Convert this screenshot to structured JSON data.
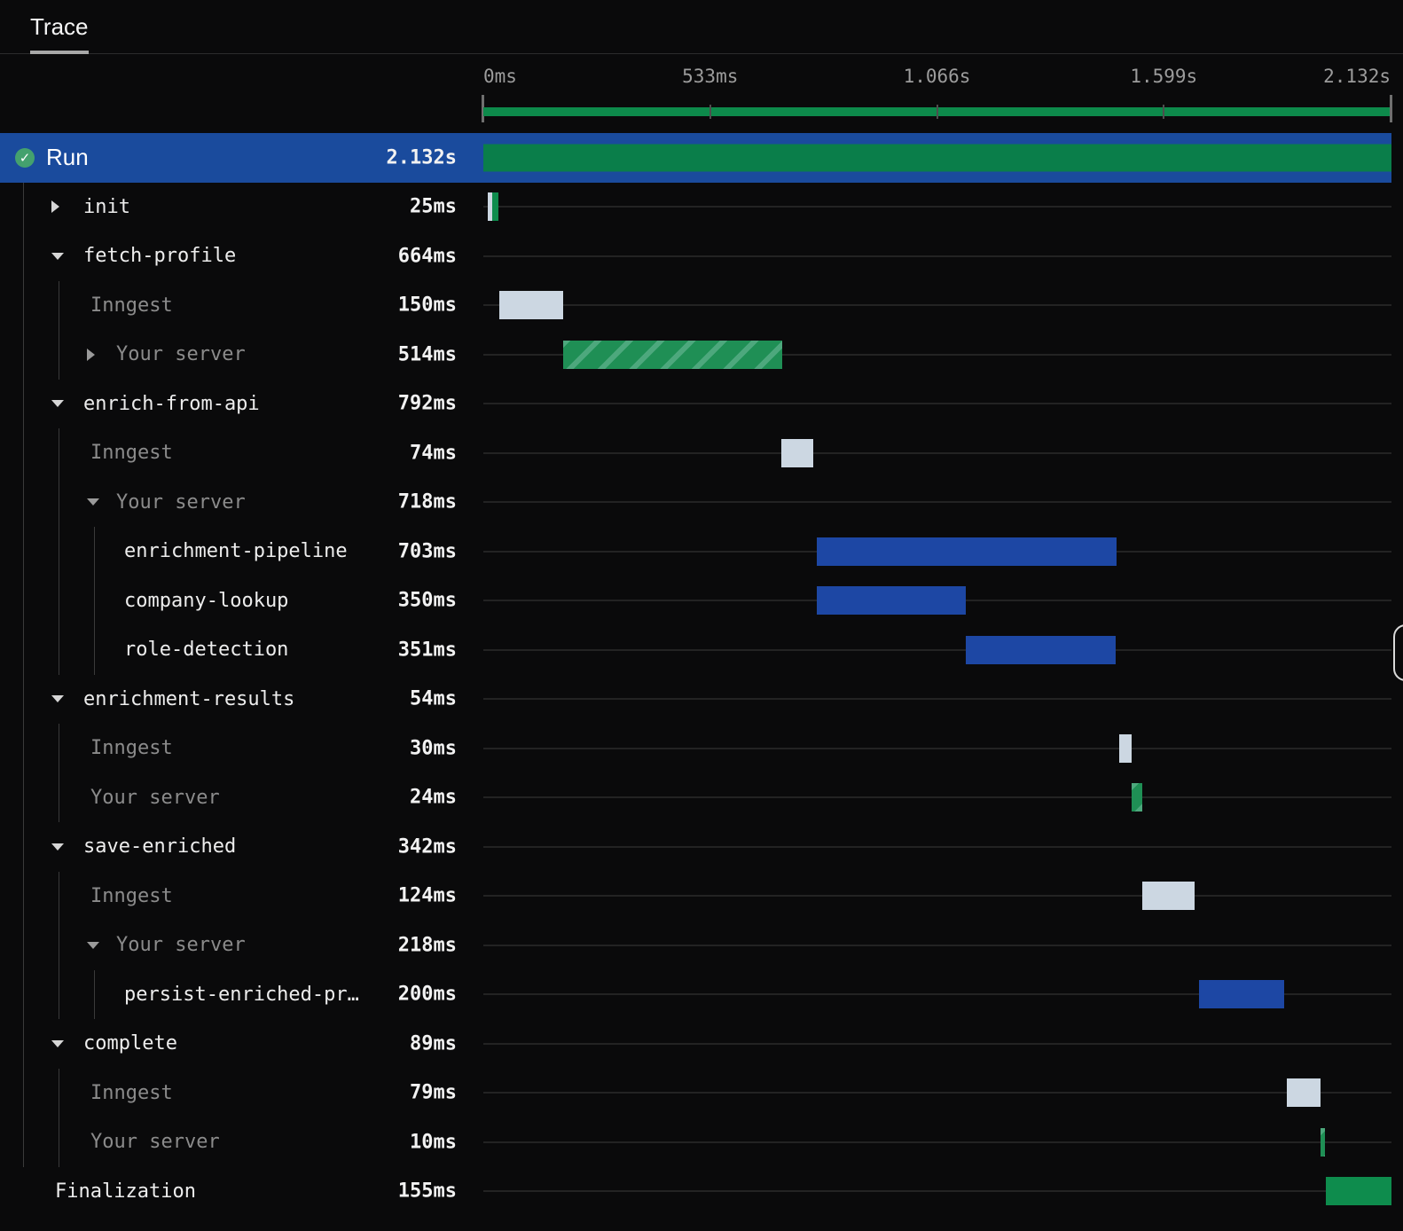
{
  "tabs": [
    {
      "label": "Trace"
    }
  ],
  "colors": {
    "selected_row": "#1a4b9d",
    "run_green": "#0a7e4a",
    "final_green": "#0e8c4d",
    "bar_blue": "#1d47a4",
    "bar_light": "#ccd7e2",
    "hatch_base": "#1f8f55",
    "hatch_stripe": "#4da87d",
    "minimap_green": "#0d8a4b",
    "status_green": "#44a16e"
  },
  "timeline": {
    "total_ms": 2132,
    "ticks": [
      {
        "label": "0ms",
        "pos": 0
      },
      {
        "label": "533ms",
        "pos": 0.25
      },
      {
        "label": "1.066s",
        "pos": 0.5
      },
      {
        "label": "1.599s",
        "pos": 0.75
      },
      {
        "label": "2.132s",
        "pos": 1
      }
    ]
  },
  "rows": [
    {
      "name": "run",
      "label": "Run",
      "duration": "2.132s",
      "kind": "run",
      "selected": true,
      "muted": false,
      "arrow": null,
      "status_icon": "check",
      "guides": [],
      "bar": {
        "type": "run",
        "start": 0,
        "dur": 2132
      }
    },
    {
      "name": "init",
      "label": "init",
      "duration": "25ms",
      "kind": "step",
      "muted": false,
      "arrow": "right",
      "guides": [
        26
      ],
      "bar": {
        "type": "split",
        "segments": [
          {
            "start": 11,
            "dur": 10,
            "color": "light"
          },
          {
            "start": 21,
            "dur": 15,
            "color": "green"
          }
        ]
      }
    },
    {
      "name": "fetch-profile",
      "label": "fetch-profile",
      "duration": "664ms",
      "kind": "step",
      "muted": false,
      "arrow": "down",
      "guides": [
        26
      ],
      "bar": null
    },
    {
      "name": "fetch-profile-inngest",
      "label": "Inngest",
      "duration": "150ms",
      "kind": "subleaf",
      "muted": true,
      "arrow": null,
      "guides": [
        26,
        66
      ],
      "bar": {
        "type": "light",
        "start": 38,
        "dur": 150
      }
    },
    {
      "name": "fetch-profile-your-server",
      "label": "Your server",
      "duration": "514ms",
      "kind": "sub",
      "muted": true,
      "arrow": "right",
      "guides": [
        26,
        66
      ],
      "bar": {
        "type": "hatched",
        "start": 188,
        "dur": 514
      }
    },
    {
      "name": "enrich-from-api",
      "label": "enrich-from-api",
      "duration": "792ms",
      "kind": "step",
      "muted": false,
      "arrow": "down",
      "guides": [
        26
      ],
      "bar": null
    },
    {
      "name": "enrich-inngest",
      "label": "Inngest",
      "duration": "74ms",
      "kind": "subleaf",
      "muted": true,
      "arrow": null,
      "guides": [
        26,
        66
      ],
      "bar": {
        "type": "light",
        "start": 700,
        "dur": 74
      }
    },
    {
      "name": "enrich-your-server",
      "label": "Your server",
      "duration": "718ms",
      "kind": "sub",
      "muted": true,
      "arrow": "down",
      "guides": [
        26,
        66
      ],
      "bar": null
    },
    {
      "name": "enrichment-pipeline",
      "label": "enrichment-pipeline",
      "duration": "703ms",
      "kind": "leaf3",
      "muted": false,
      "arrow": null,
      "guides": [
        26,
        66,
        106
      ],
      "bar": {
        "type": "blue",
        "start": 783,
        "dur": 703
      }
    },
    {
      "name": "company-lookup",
      "label": "company-lookup",
      "duration": "350ms",
      "kind": "leaf3",
      "muted": false,
      "arrow": null,
      "guides": [
        26,
        66,
        106
      ],
      "bar": {
        "type": "blue",
        "start": 783,
        "dur": 350
      }
    },
    {
      "name": "role-detection",
      "label": "role-detection",
      "duration": "351ms",
      "kind": "leaf3",
      "muted": false,
      "arrow": null,
      "guides": [
        26,
        66,
        106
      ],
      "bar": {
        "type": "blue",
        "start": 1133,
        "dur": 351
      }
    },
    {
      "name": "enrichment-results",
      "label": "enrichment-results",
      "duration": "54ms",
      "kind": "step",
      "muted": false,
      "arrow": "down",
      "guides": [
        26
      ],
      "bar": null
    },
    {
      "name": "results-inngest",
      "label": "Inngest",
      "duration": "30ms",
      "kind": "subleaf",
      "muted": true,
      "arrow": null,
      "guides": [
        26,
        66
      ],
      "bar": {
        "type": "light",
        "start": 1492,
        "dur": 30
      }
    },
    {
      "name": "results-your-server",
      "label": "Your server",
      "duration": "24ms",
      "kind": "subleaf",
      "muted": true,
      "arrow": null,
      "guides": [
        26,
        66
      ],
      "bar": {
        "type": "hatched",
        "start": 1522,
        "dur": 24
      }
    },
    {
      "name": "save-enriched",
      "label": "save-enriched",
      "duration": "342ms",
      "kind": "step",
      "muted": false,
      "arrow": "down",
      "guides": [
        26
      ],
      "bar": null
    },
    {
      "name": "save-inngest",
      "label": "Inngest",
      "duration": "124ms",
      "kind": "subleaf",
      "muted": true,
      "arrow": null,
      "guides": [
        26,
        66
      ],
      "bar": {
        "type": "light",
        "start": 1546,
        "dur": 124
      }
    },
    {
      "name": "save-your-server",
      "label": "Your server",
      "duration": "218ms",
      "kind": "sub",
      "muted": true,
      "arrow": "down",
      "guides": [
        26,
        66
      ],
      "bar": null
    },
    {
      "name": "persist-enriched-profile",
      "label": "persist-enriched-pr…",
      "duration": "200ms",
      "kind": "leaf3",
      "muted": false,
      "arrow": null,
      "guides": [
        26,
        66,
        106
      ],
      "bar": {
        "type": "blue",
        "start": 1681,
        "dur": 200
      }
    },
    {
      "name": "complete",
      "label": "complete",
      "duration": "89ms",
      "kind": "step",
      "muted": false,
      "arrow": "down",
      "guides": [
        26
      ],
      "bar": null
    },
    {
      "name": "complete-inngest",
      "label": "Inngest",
      "duration": "79ms",
      "kind": "subleaf",
      "muted": true,
      "arrow": null,
      "guides": [
        26,
        66
      ],
      "bar": {
        "type": "light",
        "start": 1887,
        "dur": 79
      }
    },
    {
      "name": "complete-your-server",
      "label": "Your server",
      "duration": "10ms",
      "kind": "subleaf",
      "muted": true,
      "arrow": null,
      "guides": [
        26,
        66
      ],
      "bar": {
        "type": "hatched",
        "start": 1966,
        "dur": 10
      }
    },
    {
      "name": "finalization",
      "label": "Finalization",
      "duration": "155ms",
      "kind": "final",
      "muted": false,
      "arrow": null,
      "guides": [],
      "bar": {
        "type": "green",
        "start": 1977,
        "dur": 155
      }
    }
  ]
}
